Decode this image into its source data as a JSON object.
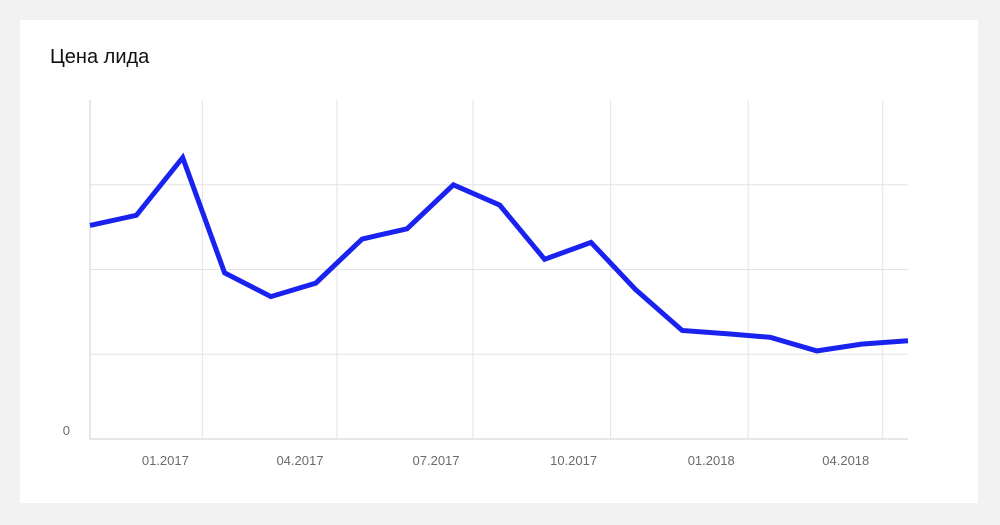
{
  "chart_data": {
    "type": "line",
    "title": "Цена лида",
    "xlabel": "",
    "ylabel": "",
    "grid": true,
    "x_tick_labels": [
      "01.2017",
      "04.2017",
      "07.2017",
      "10.2017",
      "01.2018",
      "04.2018"
    ],
    "y_tick_labels": [
      "0"
    ],
    "ylim": [
      0,
      100
    ],
    "series": [
      {
        "name": "",
        "color": "#1a22f0",
        "points": [
          {
            "x": "2016-12",
            "y": 63
          },
          {
            "x": "2017-01",
            "y": 66
          },
          {
            "x": "2017-02",
            "y": 83
          },
          {
            "x": "2017-03",
            "y": 49
          },
          {
            "x": "2017-04",
            "y": 42
          },
          {
            "x": "2017-05",
            "y": 46
          },
          {
            "x": "2017-06",
            "y": 59
          },
          {
            "x": "2017-07",
            "y": 62
          },
          {
            "x": "2017-08",
            "y": 75
          },
          {
            "x": "2017-09",
            "y": 69
          },
          {
            "x": "2017-10",
            "y": 53
          },
          {
            "x": "2017-11",
            "y": 58
          },
          {
            "x": "2017-12",
            "y": 44
          },
          {
            "x": "2018-01",
            "y": 32
          },
          {
            "x": "2018-02",
            "y": 31
          },
          {
            "x": "2018-03",
            "y": 30
          },
          {
            "x": "2018-04",
            "y": 26
          },
          {
            "x": "2018-05",
            "y": 28
          },
          {
            "x": "2018-06",
            "y": 29
          }
        ]
      }
    ]
  }
}
